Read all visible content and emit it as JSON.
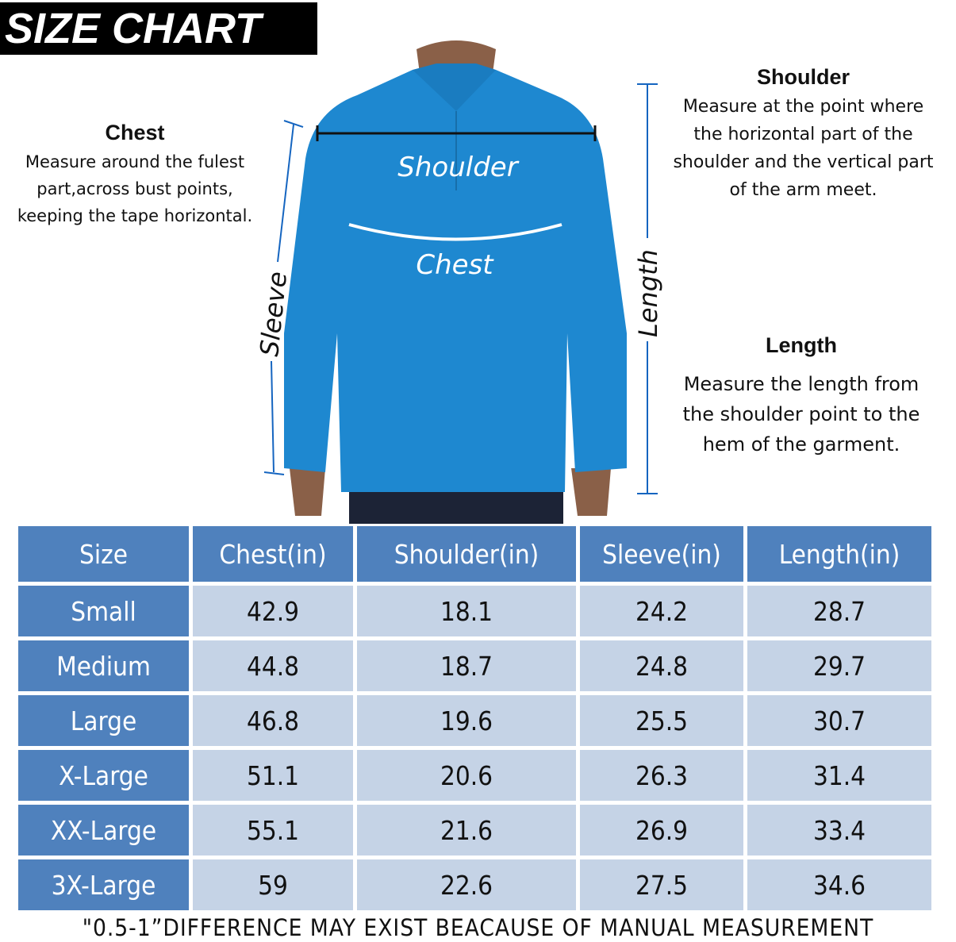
{
  "title": "SIZE CHART",
  "shoulder": {
    "heading": "Shoulder",
    "text": [
      "Measure at the point where",
      "the horizontal part of the",
      "shoulder and the vertical part",
      "of the arm meet."
    ]
  },
  "chest": {
    "heading": "Chest",
    "text": [
      "Measure around the fulest",
      "part,across bust points,",
      "keeping the tape horizontal."
    ]
  },
  "length": {
    "heading": "Length",
    "text": [
      "Measure the length from",
      "the shoulder point to the",
      "hem of the garment."
    ]
  },
  "figure_labels": {
    "shoulder": "Shoulder",
    "chest": "Chest",
    "sleeve": "Sleeve",
    "length": "Length"
  },
  "colors": {
    "header": "#4f81bd",
    "cell": "#c5d3e6",
    "shirt": "#1e88d0",
    "measure_line": "#1565c0"
  },
  "table": {
    "headers": [
      "Size",
      "Chest(in)",
      "Shoulder(in)",
      "Sleeve(in)",
      "Length(in)"
    ],
    "rows": [
      [
        "Small",
        "42.9",
        "18.1",
        "24.2",
        "28.7"
      ],
      [
        "Medium",
        "44.8",
        "18.7",
        "24.8",
        "29.7"
      ],
      [
        "Large",
        "46.8",
        "19.6",
        "25.5",
        "30.7"
      ],
      [
        "X-Large",
        "51.1",
        "20.6",
        "26.3",
        "31.4"
      ],
      [
        "XX-Large",
        "55.1",
        "21.6",
        "26.9",
        "33.4"
      ],
      [
        "3X-Large",
        "59",
        "22.6",
        "27.5",
        "34.6"
      ]
    ]
  },
  "note": "\"0.5-1”DIFFERENCE MAY EXIST BEACAUSE OF MANUAL MEASUREMENT"
}
